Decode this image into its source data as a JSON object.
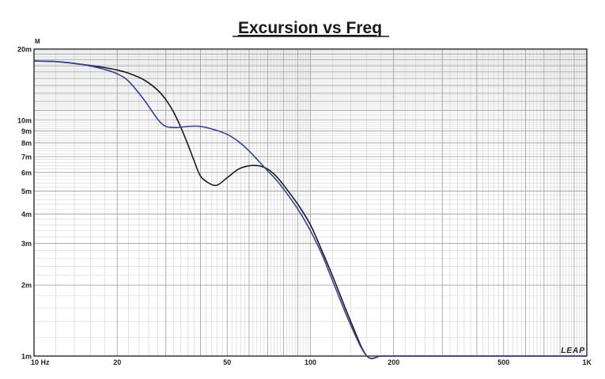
{
  "chart_data": {
    "type": "line",
    "title": "Excursion vs Freq",
    "y_unit": "M",
    "xscale": "log",
    "yscale": "log",
    "xlim": [
      10,
      1000
    ],
    "ylim": [
      0.001,
      0.02
    ],
    "x_tick_labels": [
      {
        "value": 10,
        "label": "10  Hz"
      },
      {
        "value": 20,
        "label": "20"
      },
      {
        "value": 50,
        "label": "50"
      },
      {
        "value": 100,
        "label": "100"
      },
      {
        "value": 200,
        "label": "200"
      },
      {
        "value": 500,
        "label": "500"
      },
      {
        "value": 1000,
        "label": "1K"
      }
    ],
    "y_tick_labels": [
      {
        "value": 0.02,
        "label": "20m"
      },
      {
        "value": 0.01,
        "label": "10m"
      },
      {
        "value": 0.009,
        "label": "9m"
      },
      {
        "value": 0.008,
        "label": "8m"
      },
      {
        "value": 0.007,
        "label": "7m"
      },
      {
        "value": 0.006,
        "label": "6m"
      },
      {
        "value": 0.005,
        "label": "5m"
      },
      {
        "value": 0.004,
        "label": "4m"
      },
      {
        "value": 0.003,
        "label": "3m"
      },
      {
        "value": 0.002,
        "label": "2m"
      },
      {
        "value": 0.001,
        "label": "1m"
      }
    ],
    "grid": true,
    "series": [
      {
        "color": "#1a1a1a",
        "x": [
          10,
          12,
          15,
          18,
          20,
          22,
          25,
          28,
          30,
          32,
          34,
          36,
          38,
          40,
          43,
          46,
          50,
          55,
          60,
          65,
          70,
          75,
          80,
          90,
          100,
          110,
          120,
          140,
          160,
          180,
          200,
          300,
          500,
          1000
        ],
        "y": [
          0.0178,
          0.0177,
          0.0172,
          0.0167,
          0.0163,
          0.0158,
          0.0148,
          0.0134,
          0.0122,
          0.0108,
          0.0093,
          0.0079,
          0.0067,
          0.0058,
          0.0054,
          0.0053,
          0.0057,
          0.0062,
          0.0064,
          0.0064,
          0.0062,
          0.0058,
          0.0053,
          0.0044,
          0.0036,
          0.0028,
          0.0022,
          0.0014,
          0.001,
          0.001,
          0.001,
          0.001,
          0.001,
          0.001
        ]
      },
      {
        "color": "#3b3f9e",
        "x": [
          10,
          12,
          15,
          18,
          20,
          22,
          25,
          28,
          30,
          33,
          36,
          40,
          45,
          50,
          55,
          60,
          65,
          70,
          75,
          80,
          90,
          100,
          110,
          120,
          140,
          160,
          180,
          200,
          300,
          500,
          1000
        ],
        "y": [
          0.0178,
          0.0177,
          0.0172,
          0.0164,
          0.0157,
          0.0146,
          0.0122,
          0.0101,
          0.0094,
          0.0093,
          0.0094,
          0.0094,
          0.0091,
          0.0087,
          0.0081,
          0.0074,
          0.0067,
          0.0061,
          0.0056,
          0.0051,
          0.0042,
          0.0034,
          0.0027,
          0.0021,
          0.00135,
          0.001,
          0.001,
          0.001,
          0.001,
          0.001,
          0.001
        ]
      }
    ],
    "logo": "LEAP"
  }
}
